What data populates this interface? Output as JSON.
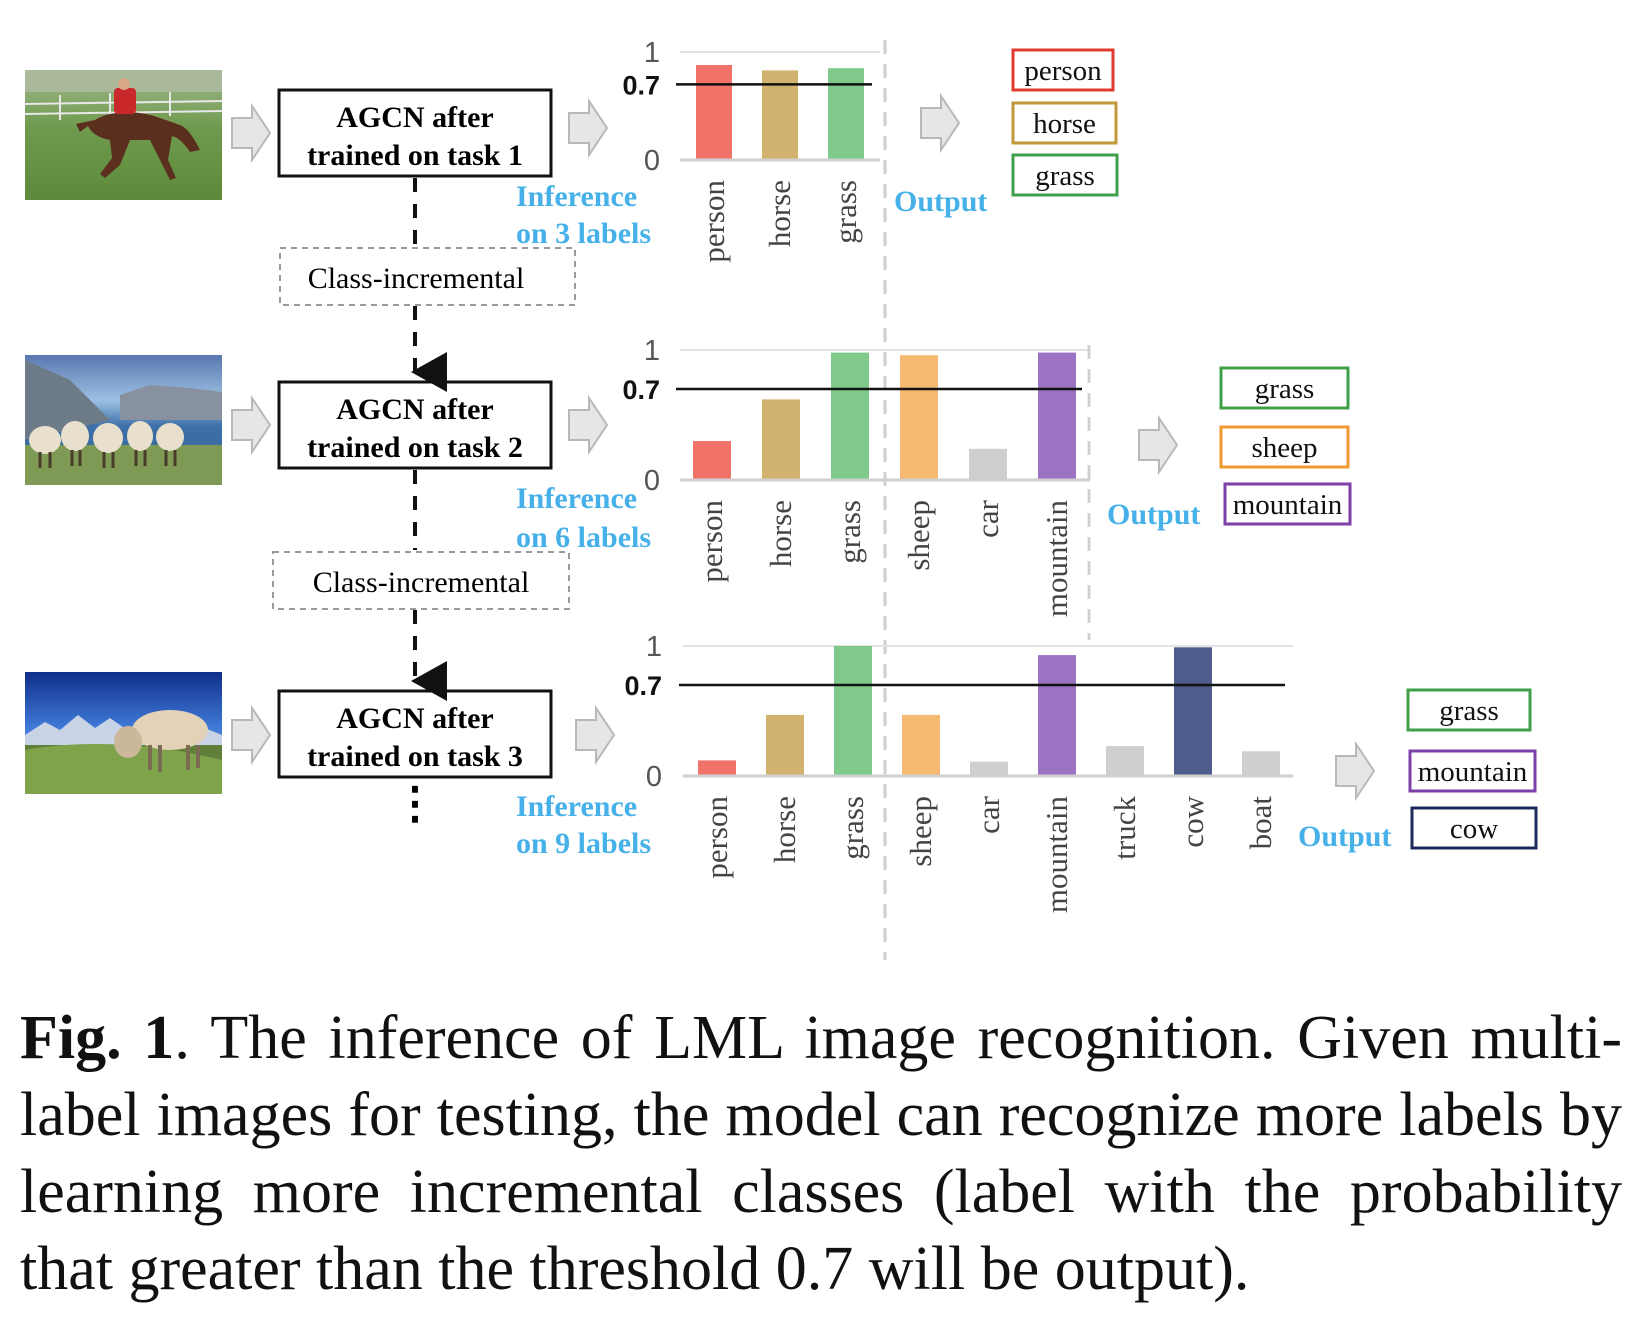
{
  "colors": {
    "person": "#f07268",
    "horse": "#d1b36f",
    "grass": "#7fca8b",
    "sheep": "#f5b970",
    "car": "#cfcfcf",
    "mountain": "#9b73c2",
    "truck": "#cfcfcf",
    "cow": "#4e5c8c",
    "boat": "#cfcfcf",
    "accent_blue": "#46b0e9",
    "gray_arrow": "#e4e4e4",
    "box_person": "#e23a2f",
    "box_horse": "#c09a3a",
    "box_grass": "#3f9f4b",
    "box_sheep": "#ef9a33",
    "box_mountain": "#7d3fa8",
    "box_cow": "#1e2a5c"
  },
  "images": [
    {
      "name": "horse-rider-photo",
      "subject": "person riding horse on grass"
    },
    {
      "name": "sheep-photo",
      "subject": "sheep on grass by mountains and sea"
    },
    {
      "name": "cow-photo",
      "subject": "cow on grass with mountains"
    }
  ],
  "tasks": [
    {
      "model_line1": "AGCN after",
      "model_line2": "trained on task 1",
      "inference_line1": "Inference",
      "inference_line2": "on 3 labels",
      "output_label": "Output"
    },
    {
      "model_line1": "AGCN after",
      "model_line2": "trained on task 2",
      "inference_line1": "Inference",
      "inference_line2": "on 6 labels",
      "output_label": "Output"
    },
    {
      "model_line1": "AGCN after",
      "model_line2": "trained on task 3",
      "inference_line1": "Inference",
      "inference_line2": "on 9 labels",
      "output_label": "Output"
    }
  ],
  "transitions": [
    {
      "label": "Class-incremental"
    },
    {
      "label": "Class-incremental"
    }
  ],
  "continuation": "⋮",
  "chart_data": [
    {
      "type": "bar",
      "categories": [
        "person",
        "horse",
        "grass"
      ],
      "values": [
        0.88,
        0.83,
        0.85
      ],
      "threshold": 0.7,
      "ylim": [
        0,
        1
      ],
      "yticks": [
        "1",
        "0.7",
        "0"
      ],
      "outputs": [
        "person",
        "horse",
        "grass"
      ]
    },
    {
      "type": "bar",
      "categories": [
        "person",
        "horse",
        "grass",
        "sheep",
        "car",
        "mountain"
      ],
      "values": [
        0.3,
        0.62,
        0.98,
        0.96,
        0.24,
        0.98
      ],
      "threshold": 0.7,
      "ylim": [
        0,
        1
      ],
      "yticks": [
        "1",
        "0.7",
        "0"
      ],
      "outputs": [
        "grass",
        "sheep",
        "mountain"
      ]
    },
    {
      "type": "bar",
      "categories": [
        "person",
        "horse",
        "grass",
        "sheep",
        "car",
        "mountain",
        "truck",
        "cow",
        "boat"
      ],
      "values": [
        0.12,
        0.47,
        1.0,
        0.47,
        0.11,
        0.93,
        0.23,
        0.99,
        0.19
      ],
      "threshold": 0.7,
      "ylim": [
        0,
        1
      ],
      "yticks": [
        "1",
        "0.7",
        "0"
      ],
      "outputs": [
        "grass",
        "mountain",
        "cow"
      ]
    }
  ],
  "caption": {
    "label": "Fig. 1",
    "text": ".  The inference of LML image recognition.  Given multi-label images for testing, the model can recognize more labels by learning more incremental classes (label with the probability that greater than the threshold 0.7 will be output)."
  }
}
